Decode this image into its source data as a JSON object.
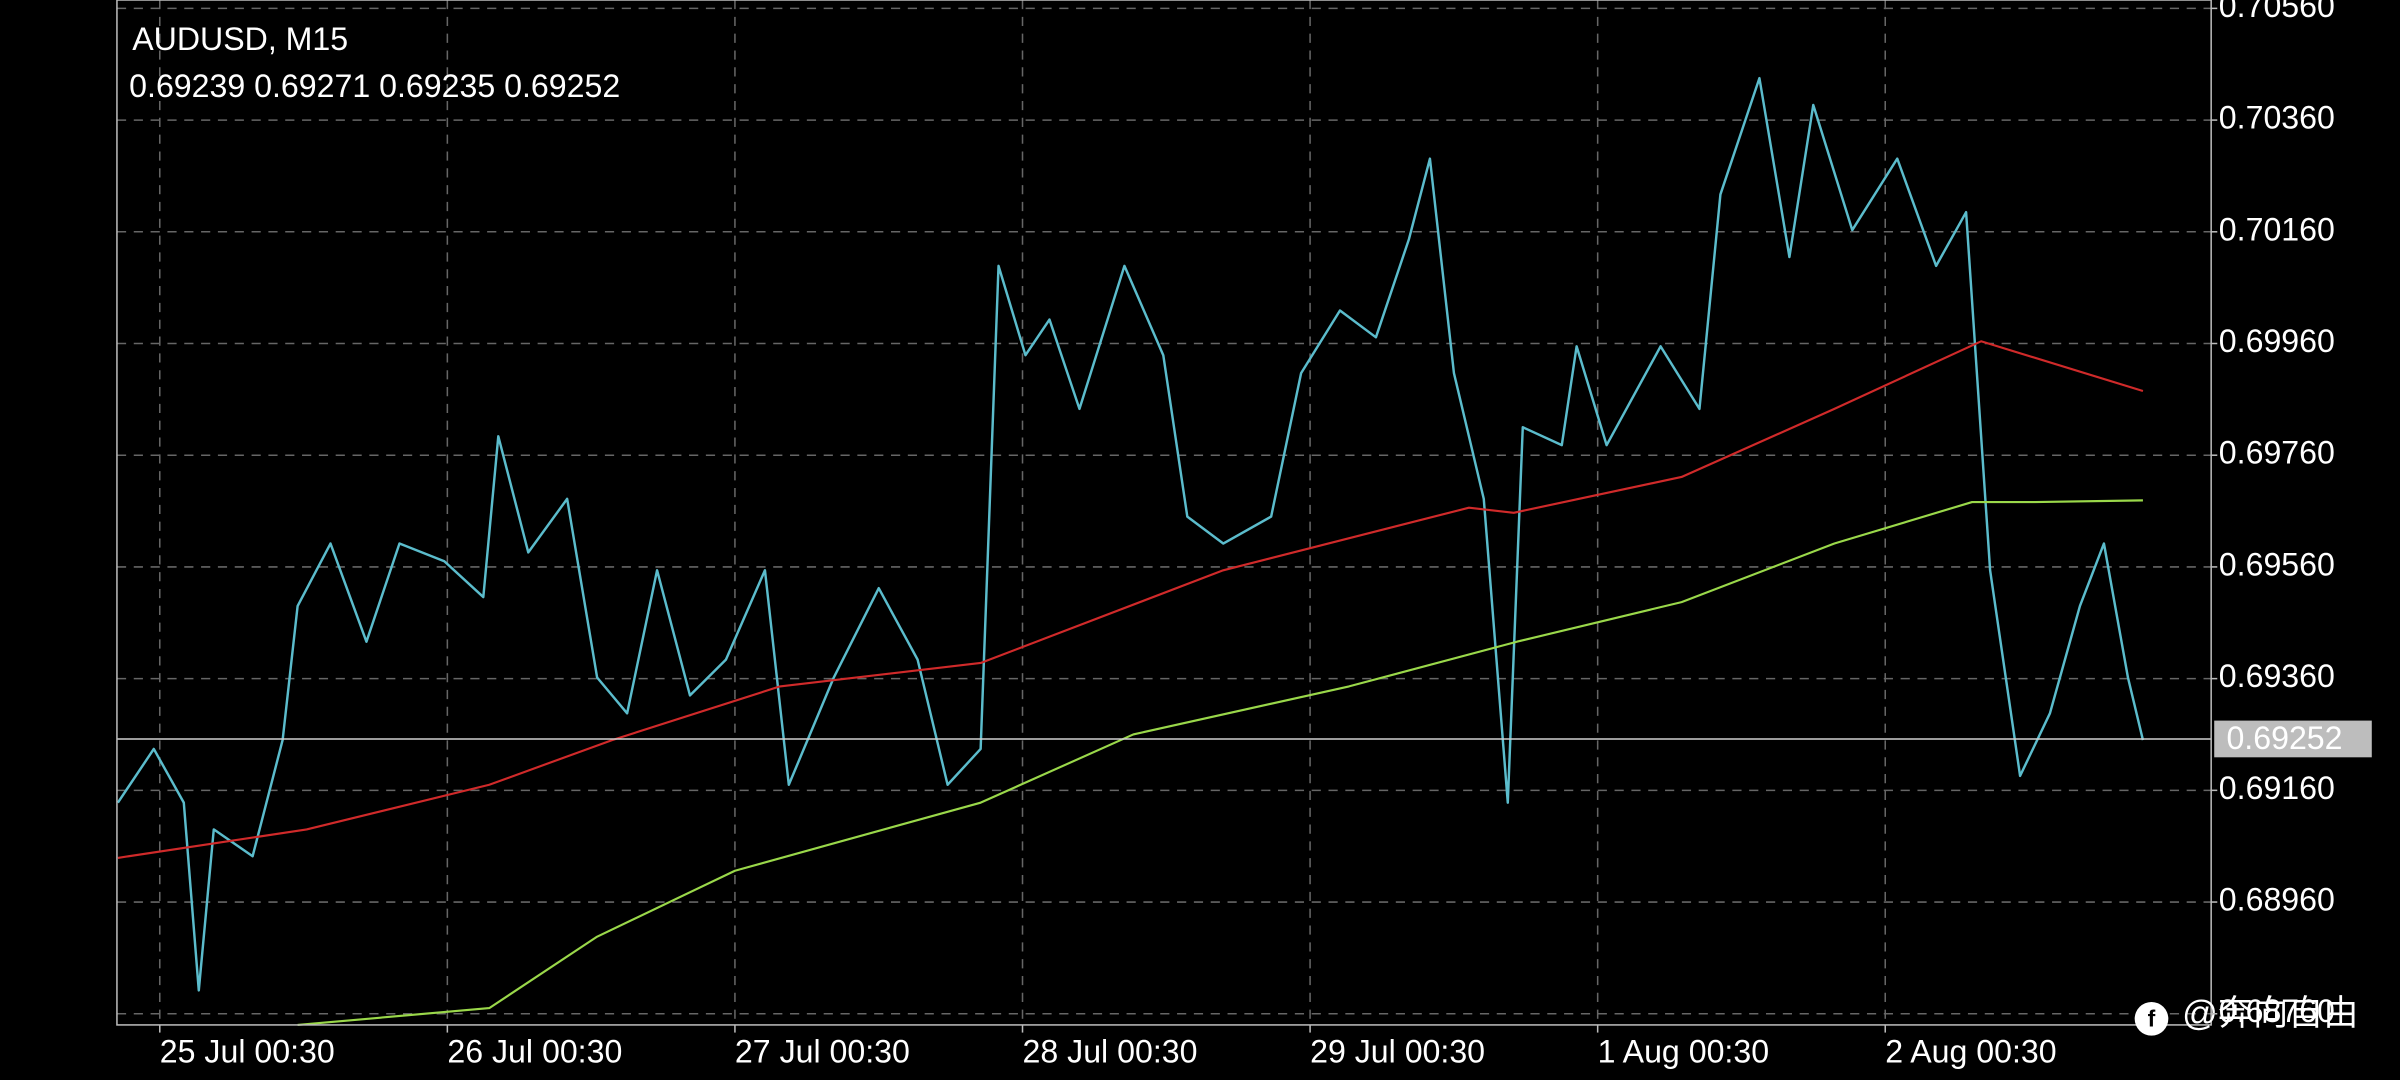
{
  "chart_data": {
    "type": "line",
    "title": "AUDUSD, M15",
    "subtitle": "0.69239 0.69271 0.69235 0.69252",
    "xlim": [
      -14.3,
      684.8
    ],
    "ylim": [
      0.6874,
      0.70575
    ],
    "xticks": [
      {
        "value": 0,
        "label": "25 Jul 00:30"
      },
      {
        "value": 96,
        "label": "26 Jul 00:30"
      },
      {
        "value": 192,
        "label": "27 Jul 00:30"
      },
      {
        "value": 288,
        "label": "28 Jul 00:30"
      },
      {
        "value": 384,
        "label": "29 Jul 00:30"
      },
      {
        "value": 480,
        "label": "1 Aug 00:30"
      },
      {
        "value": 576,
        "label": "2 Aug 00:30"
      }
    ],
    "yticks": [
      {
        "value": 0.7056,
        "label": "0.70560"
      },
      {
        "value": 0.7036,
        "label": "0.70360"
      },
      {
        "value": 0.7016,
        "label": "0.70160"
      },
      {
        "value": 0.6996,
        "label": "0.69960"
      },
      {
        "value": 0.6976,
        "label": "0.69760"
      },
      {
        "value": 0.6956,
        "label": "0.69560"
      },
      {
        "value": 0.6936,
        "label": "0.69360"
      },
      {
        "value": 0.6916,
        "label": "0.69160"
      },
      {
        "value": 0.6896,
        "label": "0.68960"
      },
      {
        "value": 0.6876,
        "label": "0.68760"
      }
    ],
    "grid": true,
    "current_price": {
      "value": 0.69252,
      "label": "0.69252"
    },
    "series": [
      {
        "color": "#5bbccc",
        "x": [
          -14,
          -2,
          8,
          13,
          18,
          31,
          41,
          46,
          57,
          69,
          80,
          95,
          108,
          113,
          123,
          136,
          146,
          156,
          166,
          177,
          189,
          202,
          210,
          225,
          240,
          253,
          263,
          274,
          280,
          289,
          297,
          307,
          322,
          335,
          343,
          355,
          371,
          381,
          394,
          406,
          417,
          424,
          432,
          442,
          450,
          455,
          468,
          473,
          483,
          501,
          514,
          521,
          534,
          544,
          552,
          565,
          580,
          593,
          603,
          611,
          621,
          631,
          641,
          649,
          657,
          662
        ],
        "values": [
          0.69138,
          0.69234,
          0.69138,
          0.68802,
          0.6909,
          0.69042,
          0.6925,
          0.6949,
          0.69602,
          0.69426,
          0.69602,
          0.6957,
          0.69506,
          0.69794,
          0.69586,
          0.69682,
          0.69362,
          0.69298,
          0.69554,
          0.6933,
          0.69394,
          0.69554,
          0.6917,
          0.69362,
          0.69522,
          0.69394,
          0.6917,
          0.69234,
          0.70099,
          0.69939,
          0.70003,
          0.69843,
          0.70099,
          0.69939,
          0.6965,
          0.69602,
          0.6965,
          0.69907,
          0.70019,
          0.69971,
          0.70147,
          0.70291,
          0.69907,
          0.69682,
          0.69138,
          0.6981,
          0.69778,
          0.69955,
          0.69778,
          0.69955,
          0.69843,
          0.70227,
          0.70435,
          0.70115,
          0.70387,
          0.70163,
          0.70291,
          0.70099,
          0.70195,
          0.69554,
          0.69186,
          0.69298,
          0.6949,
          0.69602,
          0.69362,
          0.6925
        ]
      },
      {
        "color": "#d02a2a",
        "x": [
          -14,
          49,
          110,
          151,
          207,
          274,
          355,
          437,
          452,
          508,
          559,
          608,
          662
        ],
        "values": [
          0.69039,
          0.6909,
          0.6917,
          0.6925,
          0.69346,
          0.69388,
          0.69554,
          0.69666,
          0.69657,
          0.69721,
          0.69843,
          0.69964,
          0.69875
        ]
      },
      {
        "color": "#9ad84a",
        "x": [
          46,
          110,
          146,
          192,
          274,
          325,
          397,
          453,
          508,
          559,
          605,
          626,
          662
        ],
        "values": [
          0.6874,
          0.6877,
          0.68898,
          0.69016,
          0.69138,
          0.6926,
          0.69346,
          0.69426,
          0.69497,
          0.69602,
          0.69676,
          0.69676,
          0.69679
        ]
      }
    ]
  },
  "watermark": "@奔向自由"
}
